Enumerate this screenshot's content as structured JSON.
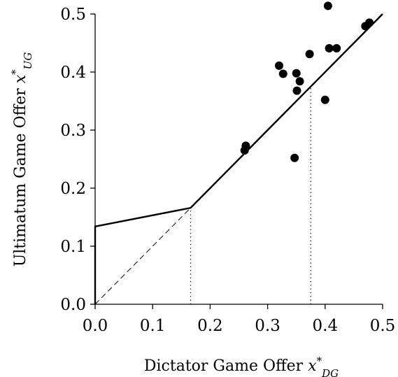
{
  "chart_data": {
    "type": "scatter",
    "xlabel": "Dictator Game Offer",
    "xlabel_math": {
      "var": "x",
      "sup": "*",
      "sub": "DG"
    },
    "ylabel": "Ultimatum Game Offer",
    "ylabel_math": {
      "var": "x",
      "sup": "*",
      "sub": "UG"
    },
    "xlim": [
      0.0,
      0.5
    ],
    "ylim": [
      0.0,
      0.5
    ],
    "xticks": [
      "0.0",
      "0.1",
      "0.2",
      "0.3",
      "0.4",
      "0.5"
    ],
    "yticks": [
      "0.0",
      "0.1",
      "0.2",
      "0.3",
      "0.4",
      "0.5"
    ],
    "grid": false,
    "points": [
      {
        "x": 0.26,
        "y": 0.265
      },
      {
        "x": 0.262,
        "y": 0.273
      },
      {
        "x": 0.32,
        "y": 0.411
      },
      {
        "x": 0.327,
        "y": 0.397
      },
      {
        "x": 0.347,
        "y": 0.252
      },
      {
        "x": 0.35,
        "y": 0.398
      },
      {
        "x": 0.351,
        "y": 0.368
      },
      {
        "x": 0.356,
        "y": 0.384
      },
      {
        "x": 0.373,
        "y": 0.431
      },
      {
        "x": 0.4,
        "y": 0.352
      },
      {
        "x": 0.405,
        "y": 0.514
      },
      {
        "x": 0.407,
        "y": 0.441
      },
      {
        "x": 0.42,
        "y": 0.441
      },
      {
        "x": 0.47,
        "y": 0.479
      },
      {
        "x": 0.477,
        "y": 0.485
      }
    ],
    "lines": [
      {
        "style": "solid",
        "x": [
          0.0,
          0.0,
          0.166,
          0.5
        ],
        "y": [
          0.0,
          0.134,
          0.166,
          0.5
        ]
      },
      {
        "style": "dashed",
        "x": [
          0.0,
          0.166
        ],
        "y": [
          0.0,
          0.166
        ]
      },
      {
        "style": "dotted",
        "x": [
          0.166,
          0.166
        ],
        "y": [
          0.0,
          0.166
        ]
      },
      {
        "style": "dotted",
        "x": [
          0.375,
          0.375
        ],
        "y": [
          0.0,
          0.375
        ]
      }
    ]
  }
}
